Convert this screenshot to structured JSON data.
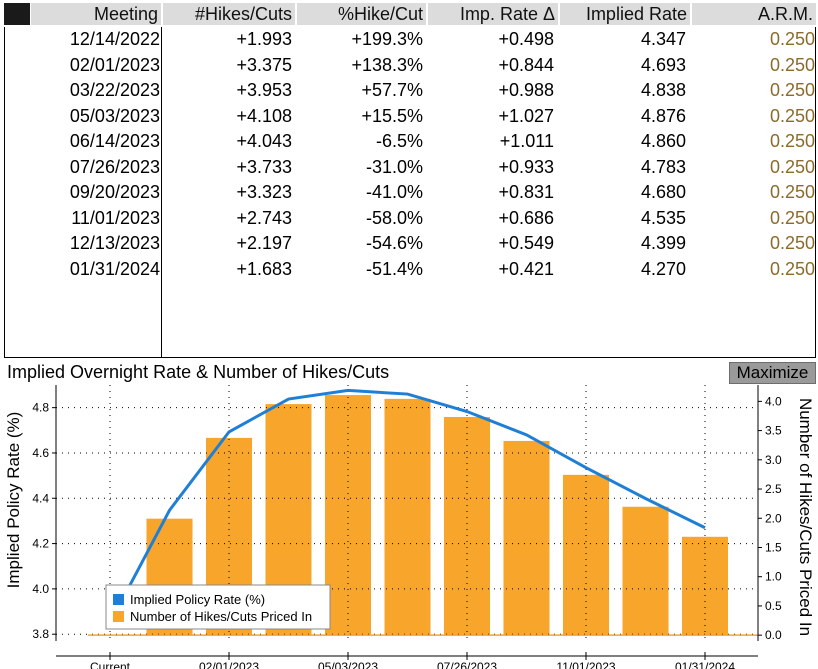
{
  "table": {
    "columns": [
      "Meeting",
      "#Hikes/Cuts",
      "%Hike/Cut",
      "Imp. Rate Δ",
      "Implied Rate",
      "A.R.M."
    ],
    "rows": [
      [
        "12/14/2022",
        "+1.993",
        "+199.3%",
        "+0.498",
        "4.347",
        "0.250"
      ],
      [
        "02/01/2023",
        "+3.375",
        "+138.3%",
        "+0.844",
        "4.693",
        "0.250"
      ],
      [
        "03/22/2023",
        "+3.953",
        "+57.7%",
        "+0.988",
        "4.838",
        "0.250"
      ],
      [
        "05/03/2023",
        "+4.108",
        "+15.5%",
        "+1.027",
        "4.876",
        "0.250"
      ],
      [
        "06/14/2023",
        "+4.043",
        "-6.5%",
        "+1.011",
        "4.860",
        "0.250"
      ],
      [
        "07/26/2023",
        "+3.733",
        "-31.0%",
        "+0.933",
        "4.783",
        "0.250"
      ],
      [
        "09/20/2023",
        "+3.323",
        "-41.0%",
        "+0.831",
        "4.680",
        "0.250"
      ],
      [
        "11/01/2023",
        "+2.743",
        "-58.0%",
        "+0.686",
        "4.535",
        "0.250"
      ],
      [
        "12/13/2023",
        "+2.197",
        "-54.6%",
        "+0.549",
        "4.399",
        "0.250"
      ],
      [
        "01/31/2024",
        "+1.683",
        "-51.4%",
        "+0.421",
        "4.270",
        "0.250"
      ]
    ]
  },
  "chart": {
    "title": "Implied Overnight Rate & Number of Hikes/Cuts",
    "maximize_label": "Maximize"
  },
  "colors": {
    "bar": "#f7a52b",
    "line": "#1f7fd6",
    "arm": "#8b6b2b",
    "header_bg": "#dcdcdc"
  },
  "chart_data": {
    "type": "bar",
    "categories": [
      "Current",
      "12/14/2022",
      "02/01/2023",
      "03/22/2023",
      "05/03/2023",
      "06/14/2023",
      "07/26/2023",
      "09/20/2023",
      "11/01/2023",
      "12/13/2023",
      "01/31/2024"
    ],
    "x_tick_labels": [
      "Current",
      "02/01/2023",
      "05/03/2023",
      "07/26/2023",
      "11/01/2023",
      "01/31/2024"
    ],
    "series": [
      {
        "name": "Implied Policy Rate (%)",
        "type": "line",
        "axis": "left",
        "values": [
          3.85,
          4.347,
          4.693,
          4.838,
          4.876,
          4.86,
          4.783,
          4.68,
          4.535,
          4.399,
          4.27
        ]
      },
      {
        "name": "Number of Hikes/Cuts Priced In",
        "type": "bar",
        "axis": "right",
        "values": [
          0,
          1.993,
          3.375,
          3.953,
          4.108,
          4.043,
          3.733,
          3.323,
          2.743,
          2.197,
          1.683
        ]
      }
    ],
    "ylabel": "Implied Policy Rate (%)",
    "ylabel_right": "Number of Hikes/Cuts Priced In",
    "ylim": [
      3.77,
      4.9
    ],
    "ylim_right": [
      -0.1,
      4.28
    ],
    "yticks": [
      "3.8",
      "4.0",
      "4.2",
      "4.4",
      "4.6",
      "4.8"
    ],
    "yticks_right": [
      "0.0",
      "0.5",
      "1.0",
      "1.5",
      "2.0",
      "2.5",
      "3.0",
      "3.5",
      "4.0"
    ],
    "grid": true,
    "legend_position": "bottom-left"
  }
}
